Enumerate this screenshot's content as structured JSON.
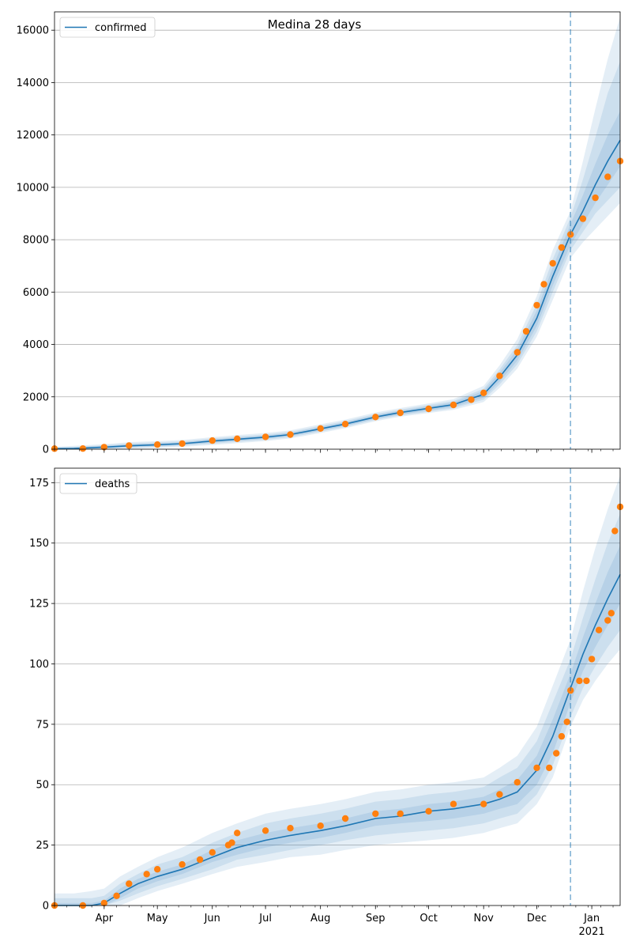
{
  "title": "Medina 28 days",
  "colors": {
    "model_line": "#1f77b4",
    "observed_points": "#ff7f0e",
    "band": "#1f77b4",
    "forecast_marker": "#1f77b4",
    "grid": "#b0b0b0"
  },
  "x_axis": {
    "ticks": [
      {
        "date": "2020-04-01",
        "label": "Apr"
      },
      {
        "date": "2020-05-01",
        "label": "May"
      },
      {
        "date": "2020-06-01",
        "label": "Jun"
      },
      {
        "date": "2020-07-01",
        "label": "Jul"
      },
      {
        "date": "2020-08-01",
        "label": "Aug"
      },
      {
        "date": "2020-09-01",
        "label": "Sep"
      },
      {
        "date": "2020-10-01",
        "label": "Oct"
      },
      {
        "date": "2020-11-01",
        "label": "Nov"
      },
      {
        "date": "2020-12-01",
        "label": "Dec"
      },
      {
        "date": "2021-01-01",
        "label": "Jan"
      }
    ],
    "year_label": "2021",
    "range": [
      "2020-03-04",
      "2021-01-17"
    ]
  },
  "chart_data": [
    {
      "type": "line",
      "legend": "confirmed",
      "legend_position": "top-left",
      "grid": "horizontal",
      "ylim": [
        0,
        16700
      ],
      "yticks": [
        0,
        2000,
        4000,
        6000,
        8000,
        10000,
        12000,
        14000,
        16000
      ],
      "forecast_start": "2020-12-20",
      "model": {
        "x": [
          "2020-03-04",
          "2020-03-15",
          "2020-04-01",
          "2020-04-15",
          "2020-05-01",
          "2020-05-15",
          "2020-06-01",
          "2020-06-15",
          "2020-07-01",
          "2020-07-15",
          "2020-08-01",
          "2020-08-15",
          "2020-09-01",
          "2020-09-15",
          "2020-10-01",
          "2020-10-15",
          "2020-11-01",
          "2020-11-10",
          "2020-11-20",
          "2020-12-01",
          "2020-12-10",
          "2020-12-20",
          "2020-12-27",
          "2021-01-03",
          "2021-01-10",
          "2021-01-17"
        ],
        "y": [
          20,
          30,
          80,
          130,
          170,
          210,
          310,
          380,
          460,
          560,
          780,
          960,
          1230,
          1400,
          1560,
          1700,
          2100,
          2750,
          3600,
          5000,
          6600,
          8200,
          9100,
          10100,
          11000,
          11800
        ],
        "bands": [
          {
            "lower": [
              0,
              0,
              40,
              80,
              120,
              160,
              250,
              320,
              400,
              500,
              710,
              890,
              1160,
              1330,
              1480,
              1610,
              1970,
              2580,
              3380,
              4700,
              6250,
              7800,
              8600,
              9400,
              10100,
              10800
            ],
            "upper": [
              40,
              60,
              120,
              180,
              220,
              260,
              370,
              440,
              520,
              620,
              850,
              1030,
              1300,
              1470,
              1640,
              1790,
              2230,
              2920,
              3820,
              5300,
              6950,
              8600,
              9700,
              10900,
              12000,
              12900
            ]
          },
          {
            "lower": [
              0,
              0,
              20,
              50,
              90,
              130,
              210,
              280,
              360,
              460,
              670,
              850,
              1120,
              1290,
              1430,
              1560,
              1890,
              2470,
              3240,
              4500,
              6000,
              7600,
              8300,
              9000,
              9500,
              10000
            ],
            "upper": [
              60,
              90,
              150,
              220,
              260,
              300,
              410,
              480,
              560,
              660,
              890,
              1070,
              1340,
              1510,
              1690,
              1840,
              2310,
              3040,
              3980,
              5550,
              7250,
              8850,
              10300,
              11900,
              13600,
              14800
            ]
          },
          {
            "lower": [
              0,
              0,
              0,
              20,
              50,
              90,
              160,
              230,
              310,
              410,
              620,
              800,
              1070,
              1240,
              1380,
              1500,
              1800,
              2340,
              3080,
              4300,
              5700,
              7300,
              7900,
              8400,
              8900,
              9400
            ],
            "upper": [
              90,
              130,
              190,
              270,
              310,
              350,
              460,
              540,
              620,
              720,
              950,
              1130,
              1400,
              1570,
              1750,
              1910,
              2420,
              3200,
              4200,
              5850,
              7600,
              9100,
              11000,
              13000,
              14900,
              16500
            ]
          }
        ]
      },
      "observed": {
        "x": [
          "2020-03-04",
          "2020-03-20",
          "2020-04-01",
          "2020-04-15",
          "2020-05-01",
          "2020-05-15",
          "2020-06-01",
          "2020-06-15",
          "2020-07-01",
          "2020-07-15",
          "2020-08-01",
          "2020-08-15",
          "2020-09-01",
          "2020-09-15",
          "2020-10-01",
          "2020-10-15",
          "2020-10-25",
          "2020-11-01",
          "2020-11-10",
          "2020-11-20",
          "2020-11-25",
          "2020-12-01",
          "2020-12-05",
          "2020-12-10",
          "2020-12-15",
          "2020-12-20",
          "2020-12-27",
          "2021-01-03",
          "2021-01-10",
          "2021-01-17"
        ],
        "y": [
          20,
          25,
          80,
          140,
          175,
          215,
          330,
          400,
          470,
          560,
          790,
          960,
          1230,
          1390,
          1540,
          1690,
          1890,
          2150,
          2800,
          3700,
          4500,
          5500,
          6300,
          7100,
          7700,
          8200,
          8800,
          9600,
          10400,
          11000
        ]
      }
    },
    {
      "type": "line",
      "legend": "deaths",
      "legend_position": "top-left",
      "grid": "horizontal",
      "ylim": [
        0,
        181
      ],
      "yticks": [
        0,
        25,
        50,
        75,
        100,
        125,
        150,
        175
      ],
      "forecast_start": "2020-12-20",
      "model": {
        "x": [
          "2020-03-04",
          "2020-03-15",
          "2020-03-25",
          "2020-04-01",
          "2020-04-10",
          "2020-04-20",
          "2020-05-01",
          "2020-05-15",
          "2020-06-01",
          "2020-06-15",
          "2020-07-01",
          "2020-07-15",
          "2020-08-01",
          "2020-08-15",
          "2020-09-01",
          "2020-09-15",
          "2020-10-01",
          "2020-10-15",
          "2020-11-01",
          "2020-11-10",
          "2020-11-20",
          "2020-12-01",
          "2020-12-10",
          "2020-12-20",
          "2020-12-27",
          "2021-01-03",
          "2021-01-10",
          "2021-01-17"
        ],
        "y": [
          0,
          0,
          0,
          1,
          5,
          9,
          12,
          15,
          20,
          24,
          27,
          29,
          31,
          33,
          36,
          37,
          39,
          40,
          42,
          44,
          47,
          56,
          70,
          90,
          104,
          116,
          127,
          137
        ],
        "bands": [
          {
            "lower": [
              0,
              0,
              0,
              0,
              3,
              7,
              10,
              13,
              18,
              21,
              24,
              26,
              28,
              30,
              33,
              34,
              35,
              36,
              38,
              40,
              42,
              50,
              63,
              84,
              97,
              107,
              116,
              125
            ],
            "upper": [
              1,
              1,
              1,
              2,
              7,
              11,
              14,
              17,
              23,
              27,
              30,
              32,
              34,
              36,
              39,
              40,
              42,
              43,
              45,
              48,
              52,
              62,
              77,
              96,
              111,
              125,
              138,
              149
            ]
          },
          {
            "lower": [
              0,
              0,
              0,
              0,
              2,
              5,
              8,
              11,
              15,
              19,
              21,
              23,
              25,
              27,
              29,
              30,
              31,
              32,
              34,
              36,
              38,
              46,
              58,
              78,
              90,
              99,
              107,
              114
            ],
            "upper": [
              3,
              3,
              3,
              4,
              9,
              13,
              17,
              20,
              26,
              30,
              34,
              36,
              38,
              40,
              43,
              44,
              46,
              47,
              49,
              53,
              57,
              68,
              84,
              102,
              119,
              135,
              150,
              162
            ]
          },
          {
            "lower": [
              0,
              0,
              0,
              0,
              0,
              3,
              6,
              9,
              13,
              16,
              18,
              20,
              21,
              23,
              25,
              26,
              27,
              28,
              30,
              32,
              34,
              42,
              53,
              74,
              85,
              93,
              100,
              106
            ],
            "upper": [
              5,
              5,
              6,
              7,
              12,
              16,
              20,
              24,
              30,
              34,
              38,
              40,
              42,
              44,
              47,
              48,
              50,
              51,
              53,
              57,
              62,
              74,
              91,
              110,
              130,
              148,
              164,
              178
            ]
          }
        ]
      },
      "observed": {
        "x": [
          "2020-03-04",
          "2020-03-20",
          "2020-04-01",
          "2020-04-08",
          "2020-04-15",
          "2020-04-25",
          "2020-05-01",
          "2020-05-15",
          "2020-05-25",
          "2020-06-01",
          "2020-06-10",
          "2020-06-12",
          "2020-06-15",
          "2020-07-01",
          "2020-07-15",
          "2020-08-01",
          "2020-08-15",
          "2020-09-01",
          "2020-09-15",
          "2020-10-01",
          "2020-10-15",
          "2020-11-01",
          "2020-11-10",
          "2020-11-20",
          "2020-12-01",
          "2020-12-08",
          "2020-12-12",
          "2020-12-15",
          "2020-12-18",
          "2020-12-20",
          "2020-12-25",
          "2020-12-29",
          "2021-01-01",
          "2021-01-05",
          "2021-01-10",
          "2021-01-12",
          "2021-01-14",
          "2021-01-17"
        ],
        "y": [
          0,
          0,
          1,
          4,
          9,
          13,
          15,
          17,
          19,
          22,
          25,
          26,
          30,
          31,
          32,
          33,
          36,
          38,
          38,
          39,
          42,
          42,
          46,
          51,
          57,
          57,
          63,
          70,
          76,
          89,
          93,
          93,
          102,
          114,
          118,
          121,
          155,
          165
        ]
      }
    }
  ]
}
